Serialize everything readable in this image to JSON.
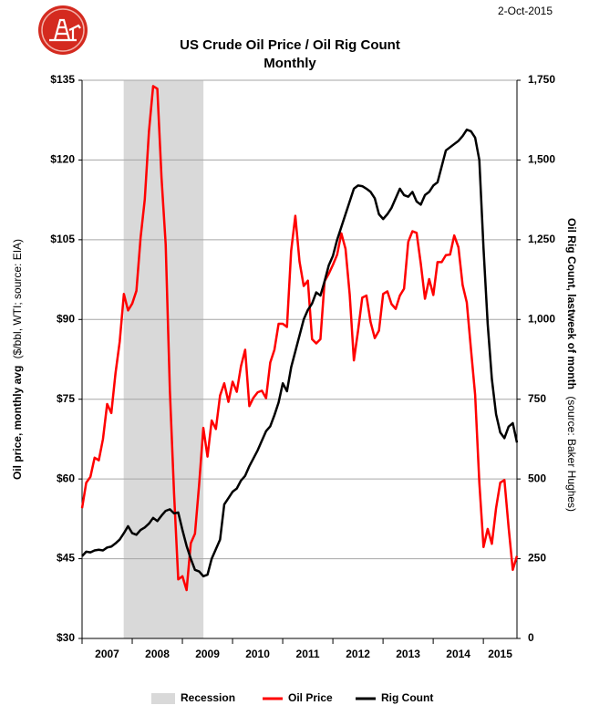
{
  "chart_data": {
    "type": "line",
    "date": "2-Oct-2015",
    "title": "US Crude Oil Price / Oil Rig Count",
    "subtitle": "Monthly",
    "ylabel": "Oil price, monthly avg",
    "ylabel_note": "($/bbl, WTI; source: EIA)",
    "y2label": "Oil Rig Count, lastweek of month",
    "y2label_note": "(source: Baker Hughes)",
    "xlim": [
      2007,
      2015.67
    ],
    "xticks": [
      2007,
      2008,
      2009,
      2010,
      2011,
      2012,
      2013,
      2014,
      2015
    ],
    "ylim": [
      30,
      135
    ],
    "yticks": [
      {
        "value": 30,
        "label": "$30"
      },
      {
        "value": 45,
        "label": "$45"
      },
      {
        "value": 60,
        "label": "$60"
      },
      {
        "value": 75,
        "label": "$75"
      },
      {
        "value": 90,
        "label": "$90"
      },
      {
        "value": 105,
        "label": "$105"
      },
      {
        "value": 120,
        "label": "$120"
      },
      {
        "value": 135,
        "label": "$135"
      }
    ],
    "y2lim": [
      0,
      1750
    ],
    "y2ticks": [
      0,
      250,
      500,
      750,
      {
        "value": 1000,
        "label": "1,000"
      },
      {
        "value": 1250,
        "label": "1,250"
      },
      {
        "value": 1500,
        "label": "1,500"
      },
      {
        "value": 1750,
        "label": "1,750"
      }
    ],
    "grid": true,
    "legend": "bottom",
    "recession": {
      "name": "Recession",
      "color": "#d9d9d9",
      "span": [
        2007.83,
        2009.42
      ]
    },
    "series": [
      {
        "name": "Oil Price",
        "color": "#ff0000",
        "values": [
          54.5,
          59.3,
          60.4,
          64.0,
          63.5,
          67.5,
          74.1,
          72.4,
          79.9,
          85.8,
          94.8,
          91.7,
          93.0,
          95.4,
          105.4,
          112.6,
          125.4,
          133.9,
          133.4,
          116.7,
          104.1,
          76.6,
          57.3,
          41.1,
          41.7,
          39.1,
          47.9,
          49.7,
          59.0,
          69.6,
          64.2,
          71.0,
          69.4,
          75.7,
          78.0,
          74.5,
          78.3,
          76.4,
          81.2,
          84.3,
          73.7,
          75.3,
          76.3,
          76.6,
          75.2,
          81.9,
          84.3,
          89.2,
          89.2,
          88.6,
          102.9,
          109.5,
          100.9,
          96.3,
          97.3,
          86.3,
          85.5,
          86.3,
          97.2,
          98.6,
          100.3,
          102.2,
          106.2,
          103.3,
          94.7,
          82.3,
          87.9,
          94.1,
          94.5,
          89.5,
          86.5,
          87.9,
          94.8,
          95.3,
          92.9,
          92.0,
          94.5,
          95.8,
          104.6,
          106.6,
          106.3,
          100.5,
          93.9,
          97.6,
          94.6,
          100.8,
          100.8,
          102.1,
          102.2,
          105.8,
          103.6,
          96.5,
          93.2,
          84.4,
          75.8,
          59.3,
          47.2,
          50.6,
          47.8,
          54.5,
          59.3,
          59.8,
          50.9,
          42.9,
          45.5
        ]
      },
      {
        "name": "Rig Count",
        "color": "#000000",
        "axis": "y2",
        "values": [
          258,
          272,
          270,
          276,
          278,
          276,
          285,
          288,
          298,
          310,
          330,
          352,
          330,
          325,
          340,
          348,
          360,
          378,
          368,
          385,
          400,
          405,
          392,
          395,
          340,
          290,
          250,
          215,
          210,
          195,
          200,
          250,
          280,
          310,
          420,
          440,
          460,
          470,
          495,
          510,
          540,
          565,
          590,
          620,
          650,
          665,
          700,
          740,
          800,
          775,
          850,
          900,
          950,
          1000,
          1030,
          1050,
          1085,
          1075,
          1120,
          1170,
          1200,
          1250,
          1290,
          1330,
          1370,
          1410,
          1420,
          1418,
          1410,
          1400,
          1380,
          1330,
          1315,
          1330,
          1350,
          1380,
          1410,
          1390,
          1385,
          1400,
          1370,
          1360,
          1390,
          1400,
          1420,
          1430,
          1480,
          1530,
          1540,
          1550,
          1560,
          1575,
          1595,
          1590,
          1570,
          1500,
          1223,
          986,
          813,
          703,
          646,
          628,
          664,
          675,
          614
        ]
      }
    ]
  }
}
